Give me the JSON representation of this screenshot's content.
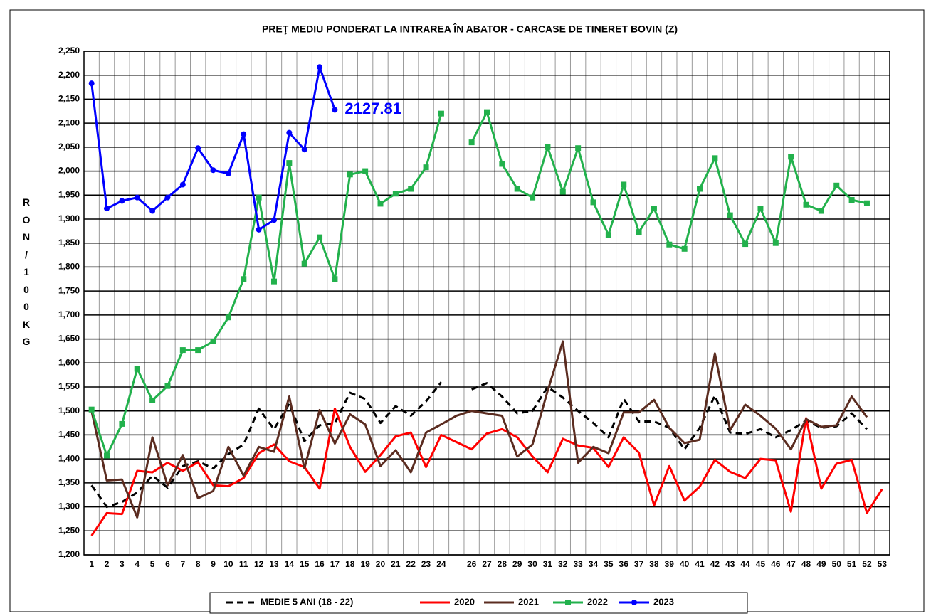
{
  "chart_data": {
    "type": "line",
    "title": "PREŢ MEDIU PONDERAT LA INTRAREA ÎN ABATOR  - CARCASE DE TINERET BOVIN (Z)",
    "y_label": "RON / 100 KG",
    "categories": [
      "1",
      "2",
      "3",
      "4",
      "5",
      "6",
      "7",
      "8",
      "9",
      "10",
      "11",
      "12",
      "13",
      "14",
      "15",
      "16",
      "17",
      "18",
      "19",
      "20",
      "21",
      "22",
      "23",
      "24",
      null,
      "26",
      "27",
      "28",
      "29",
      "30",
      "31",
      "32",
      "33",
      "34",
      "35",
      "36",
      "37",
      "38",
      "39",
      "40",
      "41",
      "42",
      "43",
      "44",
      "45",
      "46",
      "47",
      "48",
      "49",
      "50",
      "51",
      "52",
      "53"
    ],
    "ylim": [
      1200,
      2250
    ],
    "yticks": [
      {
        "value": 1200,
        "label": "1,200"
      },
      {
        "value": 1250,
        "label": "1,250"
      },
      {
        "value": 1300,
        "label": "1,300"
      },
      {
        "value": 1350,
        "label": "1,350"
      },
      {
        "value": 1400,
        "label": "1,400"
      },
      {
        "value": 1450,
        "label": "1,450"
      },
      {
        "value": 1500,
        "label": "1,500"
      },
      {
        "value": 1550,
        "label": "1,550"
      },
      {
        "value": 1600,
        "label": "1,600"
      },
      {
        "value": 1650,
        "label": "1,650"
      },
      {
        "value": 1700,
        "label": "1,700"
      },
      {
        "value": 1750,
        "label": "1,750"
      },
      {
        "value": 1800,
        "label": "1,800"
      },
      {
        "value": 1850,
        "label": "1,850"
      },
      {
        "value": 1900,
        "label": "1,900"
      },
      {
        "value": 1950,
        "label": "1,950"
      },
      {
        "value": 2000,
        "label": "2,000"
      },
      {
        "value": 2050,
        "label": "2,050"
      },
      {
        "value": 2100,
        "label": "2,100"
      },
      {
        "value": 2150,
        "label": "2,150"
      },
      {
        "value": 2200,
        "label": "2,200"
      },
      {
        "value": 2250,
        "label": "2,250"
      }
    ],
    "grid": true,
    "legend": "bottom",
    "series": [
      {
        "name": "MEDIE 5 ANI (18 - 22)",
        "color": "#000000",
        "dash": true,
        "values": [
          1345,
          1300,
          1310,
          1330,
          1365,
          1340,
          1385,
          1395,
          1380,
          1410,
          1430,
          1505,
          1462,
          1515,
          1437,
          1470,
          1475,
          1538,
          1525,
          1475,
          1510,
          1490,
          1520,
          1560,
          null,
          1545,
          1558,
          1530,
          1495,
          1500,
          1550,
          1528,
          1500,
          1475,
          1445,
          1525,
          1478,
          1478,
          1465,
          1420,
          1465,
          1532,
          1455,
          1452,
          1462,
          1445,
          1460,
          1480,
          1465,
          1468,
          1495,
          1462,
          null
        ]
      },
      {
        "name": "2020",
        "color": "#ff0000",
        "values": [
          1240,
          1287,
          1285,
          1375,
          1372,
          1392,
          1375,
          1393,
          1345,
          1343,
          1360,
          1412,
          1430,
          1395,
          1383,
          1338,
          1505,
          1425,
          1373,
          1408,
          1447,
          1455,
          1383,
          1450,
          1435,
          1420,
          1453,
          1462,
          1445,
          1405,
          1372,
          1442,
          1428,
          1423,
          1383,
          1445,
          1413,
          1303,
          1385,
          1313,
          1342,
          1398,
          1373,
          1360,
          1400,
          1397,
          1290,
          1485,
          1338,
          1390,
          1398,
          1287,
          1337
        ]
      },
      {
        "name": "2021",
        "color": "#5b2c20",
        "values": [
          1500,
          1355,
          1357,
          1278,
          1445,
          1345,
          1408,
          1318,
          1333,
          1425,
          1365,
          1425,
          1415,
          1530,
          1380,
          1502,
          1432,
          1493,
          1472,
          1385,
          1418,
          1372,
          1455,
          1472,
          1490,
          1500,
          1495,
          1490,
          1405,
          1430,
          1542,
          1645,
          1392,
          1425,
          1412,
          1497,
          1497,
          1523,
          1465,
          1433,
          1440,
          1620,
          1460,
          1513,
          1490,
          1463,
          1420,
          1483,
          1467,
          1470,
          1530,
          1487,
          null
        ]
      },
      {
        "name": "2022",
        "color": "#22b14c",
        "marker": "square",
        "values": [
          1503,
          1407,
          1473,
          1588,
          1522,
          1552,
          1627,
          1627,
          1645,
          1695,
          1775,
          1945,
          1770,
          2017,
          1807,
          1862,
          1775,
          1993,
          2000,
          1932,
          1953,
          1963,
          2008,
          2120,
          null,
          2060,
          2123,
          2015,
          1963,
          1945,
          2050,
          1957,
          2048,
          1935,
          1867,
          1972,
          1873,
          1922,
          1847,
          1838,
          1963,
          2027,
          1908,
          1848,
          1922,
          1850,
          2030,
          1930,
          1917,
          1970,
          1940,
          1933,
          null
        ]
      },
      {
        "name": "2023",
        "color": "#0000ff",
        "marker": "circle",
        "values": [
          2183,
          1922,
          1938,
          1945,
          1917,
          1945,
          1972,
          2048,
          2002,
          1995,
          2077,
          1878,
          1898,
          2080,
          2045,
          2217,
          2127.81,
          null,
          null,
          null,
          null,
          null,
          null,
          null,
          null,
          null,
          null,
          null,
          null,
          null,
          null,
          null,
          null,
          null,
          null,
          null,
          null,
          null,
          null,
          null,
          null,
          null,
          null,
          null,
          null,
          null,
          null,
          null,
          null,
          null,
          null,
          null,
          null
        ]
      }
    ],
    "annotation": {
      "text": "2127.81",
      "series": 4,
      "index": 16
    }
  }
}
